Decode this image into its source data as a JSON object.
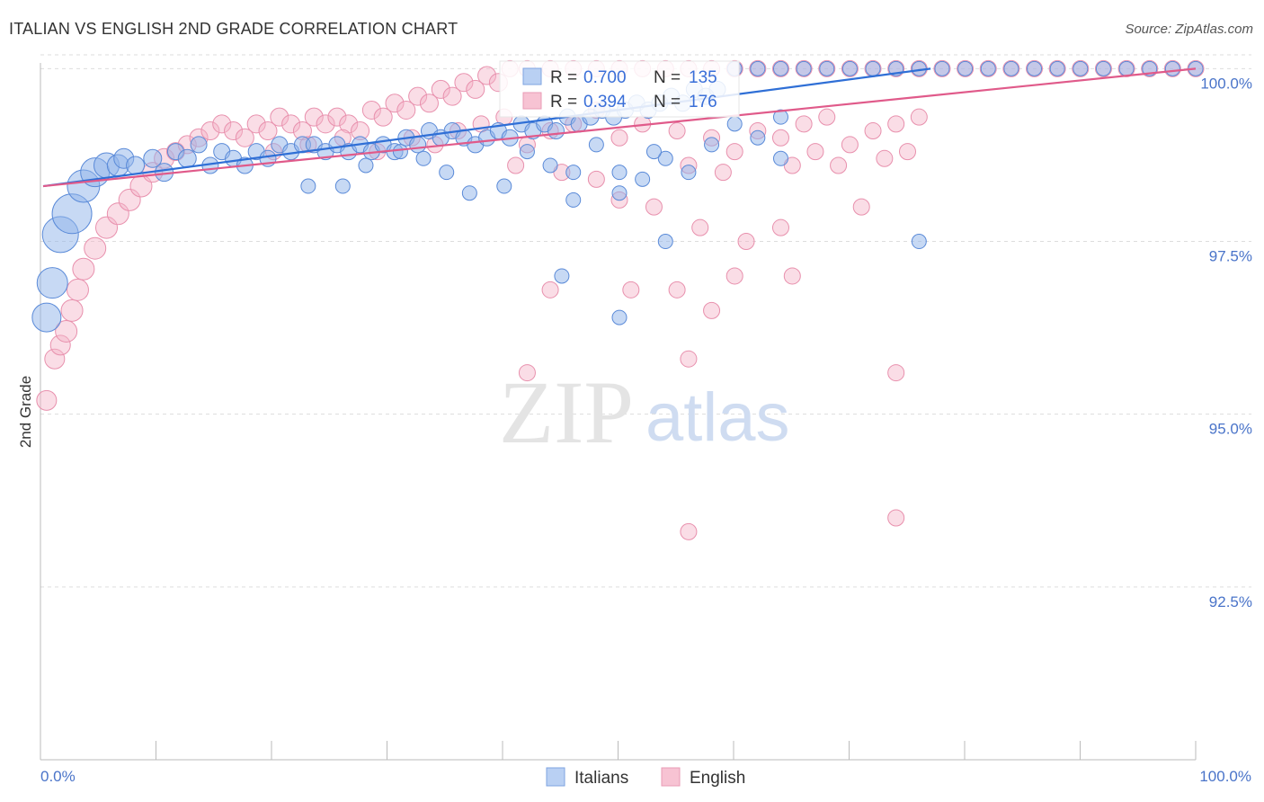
{
  "title": "ITALIAN VS ENGLISH 2ND GRADE CORRELATION CHART",
  "source": "Source: ZipAtlas.com",
  "watermark": {
    "zip": "ZIP",
    "atlas": "atlas"
  },
  "colors": {
    "italians_fill": "#8fb3ea",
    "italians_stroke": "#5a8ad8",
    "italians_line": "#2f6fd6",
    "english_fill": "#f4b3c8",
    "english_stroke": "#e890ad",
    "english_line": "#e05a8a",
    "tick_text": "#4a74c9",
    "grid": "#dddddd"
  },
  "legend": {
    "rows": [
      {
        "series": "Italians",
        "r_label": "R =",
        "r_value": "0.700",
        "n_label": "N =",
        "n_value": "135"
      },
      {
        "series": "English",
        "r_label": "R =",
        "r_value": "0.394",
        "n_label": "N =",
        "n_value": "176"
      }
    ]
  },
  "bottom_legend": [
    "Italians",
    "English"
  ],
  "chart_data": {
    "type": "scatter",
    "title": "ITALIAN VS ENGLISH 2ND GRADE CORRELATION CHART",
    "xlabel": "",
    "ylabel": "2nd Grade",
    "xlim": [
      0,
      100
    ],
    "ylim": [
      90.0,
      100.2
    ],
    "x_tick_labels": [
      "0.0%",
      "100.0%"
    ],
    "y_ticks": [
      92.5,
      95.0,
      97.5,
      100.0
    ],
    "y_tick_labels": [
      "92.5%",
      "95.0%",
      "97.5%",
      "100.0%"
    ],
    "series": [
      {
        "name": "Italians",
        "R": 0.7,
        "N": 135,
        "trend": {
          "x": [
            0,
            77
          ],
          "y": [
            98.3,
            100.0
          ]
        },
        "points": [
          [
            0.3,
            96.4,
            16
          ],
          [
            0.8,
            96.9,
            17
          ],
          [
            1.5,
            97.6,
            20
          ],
          [
            2.5,
            97.9,
            22
          ],
          [
            3.5,
            98.3,
            18
          ],
          [
            4.5,
            98.5,
            16
          ],
          [
            5.5,
            98.6,
            14
          ],
          [
            6.5,
            98.6,
            12
          ],
          [
            7.0,
            98.7,
            11
          ],
          [
            8.0,
            98.6,
            10
          ],
          [
            9.5,
            98.7,
            10
          ],
          [
            10.5,
            98.5,
            10
          ],
          [
            11.5,
            98.8,
            9
          ],
          [
            12.5,
            98.7,
            10
          ],
          [
            13.5,
            98.9,
            9
          ],
          [
            14.5,
            98.6,
            9
          ],
          [
            15.5,
            98.8,
            9
          ],
          [
            16.5,
            98.7,
            9
          ],
          [
            17.5,
            98.6,
            9
          ],
          [
            18.5,
            98.8,
            9
          ],
          [
            19.5,
            98.7,
            9
          ],
          [
            20.5,
            98.9,
            9
          ],
          [
            21.5,
            98.8,
            9
          ],
          [
            22.5,
            98.9,
            9
          ],
          [
            23.5,
            98.9,
            9
          ],
          [
            24.5,
            98.8,
            9
          ],
          [
            25.5,
            98.9,
            9
          ],
          [
            26.5,
            98.8,
            9
          ],
          [
            27.5,
            98.9,
            9
          ],
          [
            28.5,
            98.8,
            9
          ],
          [
            29.5,
            98.9,
            9
          ],
          [
            30.5,
            98.8,
            9
          ],
          [
            31.5,
            99.0,
            9
          ],
          [
            32.5,
            98.9,
            9
          ],
          [
            33.5,
            99.1,
            9
          ],
          [
            34.5,
            99.0,
            9
          ],
          [
            35.5,
            99.1,
            9
          ],
          [
            36.5,
            99.0,
            9
          ],
          [
            37.5,
            98.9,
            9
          ],
          [
            38.5,
            99.0,
            9
          ],
          [
            39.5,
            99.1,
            9
          ],
          [
            40.5,
            99.0,
            9
          ],
          [
            41.5,
            99.2,
            9
          ],
          [
            42.5,
            99.1,
            9
          ],
          [
            43.5,
            99.2,
            9
          ],
          [
            44.5,
            99.1,
            9
          ],
          [
            45.5,
            99.3,
            9
          ],
          [
            46.5,
            99.2,
            9
          ],
          [
            47.5,
            99.3,
            9
          ],
          [
            48.5,
            99.4,
            9
          ],
          [
            49.5,
            99.3,
            9
          ],
          [
            50.5,
            99.4,
            9
          ],
          [
            51.5,
            99.5,
            9
          ],
          [
            52.5,
            99.4,
            9
          ],
          [
            53.5,
            99.5,
            9
          ],
          [
            54.5,
            99.6,
            9
          ],
          [
            55.5,
            99.5,
            9
          ],
          [
            56.5,
            99.7,
            9
          ],
          [
            57.5,
            99.6,
            9
          ],
          [
            58.5,
            99.7,
            9
          ],
          [
            23,
            98.3,
            8
          ],
          [
            26,
            98.3,
            8
          ],
          [
            28,
            98.6,
            8
          ],
          [
            31,
            98.8,
            8
          ],
          [
            33,
            98.7,
            8
          ],
          [
            35,
            98.5,
            8
          ],
          [
            37,
            98.2,
            8
          ],
          [
            40,
            98.3,
            8
          ],
          [
            42,
            98.8,
            8
          ],
          [
            44,
            98.6,
            8
          ],
          [
            46,
            98.5,
            8
          ],
          [
            48,
            98.9,
            8
          ],
          [
            50,
            98.5,
            8
          ],
          [
            52,
            98.4,
            8
          ],
          [
            54,
            98.7,
            8
          ],
          [
            56,
            98.5,
            8
          ],
          [
            58,
            98.9,
            8
          ],
          [
            60,
            99.2,
            8
          ],
          [
            62,
            99.0,
            8
          ],
          [
            64,
            99.3,
            8
          ],
          [
            46,
            98.1,
            8
          ],
          [
            50,
            98.2,
            8
          ],
          [
            53,
            98.8,
            8
          ],
          [
            54,
            97.5,
            8
          ],
          [
            64,
            98.7,
            8
          ],
          [
            76,
            97.5,
            8
          ],
          [
            50,
            96.4,
            8
          ],
          [
            45,
            97.0,
            8
          ],
          [
            60,
            100,
            8
          ],
          [
            62,
            100,
            8
          ],
          [
            64,
            100,
            8
          ],
          [
            66,
            100,
            8
          ],
          [
            68,
            100,
            8
          ],
          [
            70,
            100,
            8
          ],
          [
            72,
            100,
            8
          ],
          [
            74,
            100,
            8
          ],
          [
            76,
            100,
            8
          ],
          [
            78,
            100,
            8
          ],
          [
            80,
            100,
            8
          ],
          [
            82,
            100,
            8
          ],
          [
            84,
            100,
            8
          ],
          [
            86,
            100,
            8
          ],
          [
            88,
            100,
            8
          ],
          [
            90,
            100,
            8
          ],
          [
            92,
            100,
            8
          ],
          [
            94,
            100,
            8
          ],
          [
            96,
            100,
            8
          ],
          [
            98,
            100,
            8
          ],
          [
            100,
            100,
            8
          ]
        ]
      },
      {
        "name": "English",
        "R": 0.394,
        "N": 176,
        "trend": {
          "x": [
            0,
            100
          ],
          "y": [
            98.3,
            100.0
          ]
        },
        "points": [
          [
            0.3,
            95.2,
            11
          ],
          [
            1.0,
            95.8,
            11
          ],
          [
            1.5,
            96.0,
            11
          ],
          [
            2.0,
            96.2,
            12
          ],
          [
            2.5,
            96.5,
            12
          ],
          [
            3.0,
            96.8,
            12
          ],
          [
            3.5,
            97.1,
            12
          ],
          [
            4.5,
            97.4,
            12
          ],
          [
            5.5,
            97.7,
            12
          ],
          [
            6.5,
            97.9,
            12
          ],
          [
            7.5,
            98.1,
            12
          ],
          [
            8.5,
            98.3,
            12
          ],
          [
            9.5,
            98.5,
            11
          ],
          [
            10.5,
            98.7,
            11
          ],
          [
            11.5,
            98.8,
            10
          ],
          [
            12.5,
            98.9,
            10
          ],
          [
            13.5,
            99.0,
            10
          ],
          [
            14.5,
            99.1,
            10
          ],
          [
            15.5,
            99.2,
            10
          ],
          [
            16.5,
            99.1,
            10
          ],
          [
            17.5,
            99.0,
            10
          ],
          [
            18.5,
            99.2,
            10
          ],
          [
            19.5,
            99.1,
            10
          ],
          [
            20.5,
            99.3,
            10
          ],
          [
            21.5,
            99.2,
            10
          ],
          [
            22.5,
            99.1,
            10
          ],
          [
            23.5,
            99.3,
            10
          ],
          [
            24.5,
            99.2,
            10
          ],
          [
            25.5,
            99.3,
            10
          ],
          [
            26.5,
            99.2,
            10
          ],
          [
            27.5,
            99.1,
            10
          ],
          [
            28.5,
            99.4,
            10
          ],
          [
            29.5,
            99.3,
            10
          ],
          [
            30.5,
            99.5,
            10
          ],
          [
            31.5,
            99.4,
            10
          ],
          [
            32.5,
            99.6,
            10
          ],
          [
            33.5,
            99.5,
            10
          ],
          [
            34.5,
            99.7,
            10
          ],
          [
            35.5,
            99.6,
            10
          ],
          [
            36.5,
            99.8,
            10
          ],
          [
            37.5,
            99.7,
            10
          ],
          [
            38.5,
            99.9,
            10
          ],
          [
            39.5,
            99.8,
            10
          ],
          [
            40.5,
            100,
            9
          ],
          [
            42,
            100,
            9
          ],
          [
            44,
            100,
            9
          ],
          [
            46,
            100,
            9
          ],
          [
            48,
            100,
            9
          ],
          [
            50,
            100,
            9
          ],
          [
            52,
            100,
            9
          ],
          [
            54,
            100,
            9
          ],
          [
            56,
            100,
            9
          ],
          [
            58,
            100,
            9
          ],
          [
            60,
            100,
            9
          ],
          [
            62,
            100,
            9
          ],
          [
            64,
            100,
            9
          ],
          [
            66,
            100,
            9
          ],
          [
            68,
            100,
            9
          ],
          [
            70,
            100,
            9
          ],
          [
            72,
            100,
            9
          ],
          [
            74,
            100,
            9
          ],
          [
            76,
            100,
            9
          ],
          [
            78,
            100,
            9
          ],
          [
            80,
            100,
            9
          ],
          [
            82,
            100,
            9
          ],
          [
            84,
            100,
            9
          ],
          [
            86,
            100,
            9
          ],
          [
            88,
            100,
            9
          ],
          [
            90,
            100,
            9
          ],
          [
            92,
            100,
            9
          ],
          [
            94,
            100,
            9
          ],
          [
            96,
            100,
            9
          ],
          [
            98,
            100,
            9
          ],
          [
            100,
            100,
            9
          ],
          [
            20,
            98.8,
            9
          ],
          [
            23,
            98.9,
            9
          ],
          [
            26,
            99.0,
            9
          ],
          [
            29,
            98.8,
            9
          ],
          [
            32,
            99.0,
            9
          ],
          [
            34,
            98.9,
            9
          ],
          [
            36,
            99.1,
            9
          ],
          [
            38,
            99.2,
            9
          ],
          [
            40,
            99.3,
            9
          ],
          [
            42,
            98.9,
            9
          ],
          [
            44,
            99.1,
            9
          ],
          [
            46,
            99.2,
            9
          ],
          [
            48,
            99.4,
            9
          ],
          [
            50,
            99.0,
            9
          ],
          [
            52,
            99.2,
            9
          ],
          [
            55,
            99.1,
            9
          ],
          [
            58,
            99.0,
            9
          ],
          [
            60,
            98.8,
            9
          ],
          [
            62,
            99.1,
            9
          ],
          [
            64,
            99.0,
            9
          ],
          [
            66,
            99.2,
            9
          ],
          [
            68,
            99.3,
            9
          ],
          [
            70,
            98.9,
            9
          ],
          [
            72,
            99.1,
            9
          ],
          [
            74,
            99.2,
            9
          ],
          [
            76,
            99.3,
            9
          ],
          [
            41,
            98.6,
            9
          ],
          [
            45,
            98.5,
            9
          ],
          [
            48,
            98.4,
            9
          ],
          [
            50,
            98.1,
            9
          ],
          [
            53,
            98.0,
            9
          ],
          [
            56,
            98.6,
            9
          ],
          [
            57,
            97.7,
            9
          ],
          [
            59,
            98.5,
            9
          ],
          [
            61,
            97.5,
            9
          ],
          [
            64,
            97.7,
            9
          ],
          [
            65,
            98.6,
            9
          ],
          [
            67,
            98.8,
            9
          ],
          [
            69,
            98.6,
            9
          ],
          [
            73,
            98.7,
            9
          ],
          [
            71,
            98.0,
            9
          ],
          [
            75,
            98.8,
            9
          ],
          [
            44,
            96.8,
            9
          ],
          [
            51,
            96.8,
            9
          ],
          [
            55,
            96.8,
            9
          ],
          [
            58,
            96.5,
            9
          ],
          [
            60,
            97.0,
            9
          ],
          [
            65,
            97.0,
            9
          ],
          [
            42,
            95.6,
            9
          ],
          [
            56,
            95.8,
            9
          ],
          [
            74,
            95.6,
            9
          ],
          [
            56,
            93.3,
            9
          ],
          [
            74,
            93.5,
            9
          ]
        ]
      }
    ]
  }
}
